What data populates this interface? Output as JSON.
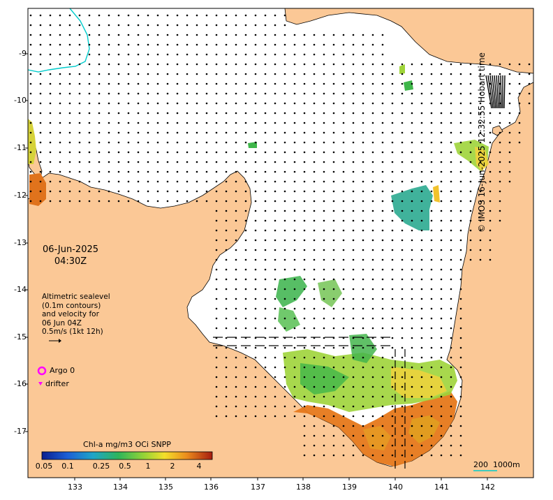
{
  "map": {
    "date": "06-Jun-2025",
    "time": "04:30Z",
    "description_lines": [
      "Altimetric sealevel",
      "(0.1m contours)",
      "and velocity for",
      "06 Jun 04Z",
      "0.5m/s (1kt 12h)"
    ],
    "argo_label": "Argo 0",
    "drifter_label": "drifter",
    "credit": "© IMOS 16-Jun-2025 12:32:55 Hobart time",
    "colorbar": {
      "title": "Chl-a mg/m3 OCi SNPP",
      "ticks": [
        "0.05",
        "0.1",
        "0.25",
        "0.5",
        "1",
        "2",
        "4"
      ]
    },
    "scale": {
      "label_a": "200",
      "label_b": "1000m"
    },
    "lon_ticks": [
      "133",
      "134",
      "135",
      "136",
      "137",
      "138",
      "139",
      "140",
      "141",
      "142"
    ],
    "lat_ticks": [
      "-9",
      "-10",
      "-11",
      "-12",
      "-13",
      "-14",
      "-15",
      "-16",
      "-17"
    ],
    "colors": {
      "land": "#fbc896",
      "ocean": "#ffffff",
      "vector": "#000000",
      "argo_marker": "#ff00ff",
      "bathymetry_contour": "#00cccc"
    }
  }
}
